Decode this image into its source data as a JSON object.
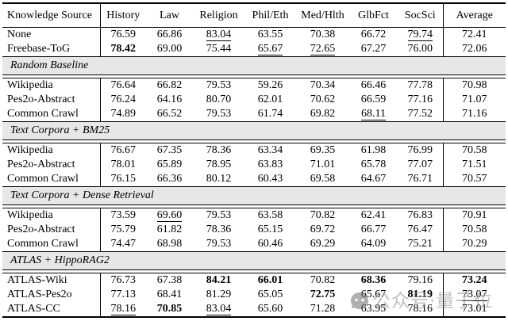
{
  "table": {
    "columns": [
      "Knowledge Source",
      "History",
      "Law",
      "Religion",
      "Phil/Eth",
      "Med/Hlth",
      "GlbFct",
      "SocSci",
      "Average"
    ],
    "sections": [
      {
        "header": null,
        "rows": [
          {
            "label": "None",
            "values": [
              {
                "v": "76.59"
              },
              {
                "v": "66.86"
              },
              {
                "v": "83.04",
                "u": true
              },
              {
                "v": "63.55"
              },
              {
                "v": "70.38"
              },
              {
                "v": "66.72"
              },
              {
                "v": "79.74",
                "u": true
              },
              {
                "v": "72.41"
              }
            ]
          },
          {
            "label": "Freebase-ToG",
            "values": [
              {
                "v": "78.42",
                "b": true
              },
              {
                "v": "69.00"
              },
              {
                "v": "75.44"
              },
              {
                "v": "65.67",
                "u": true
              },
              {
                "v": "72.65",
                "u": true
              },
              {
                "v": "67.27"
              },
              {
                "v": "76.00"
              },
              {
                "v": "72.06"
              }
            ]
          }
        ]
      },
      {
        "header": "Random Baseline",
        "rows": [
          {
            "label": "Wikipedia",
            "values": [
              {
                "v": "76.64"
              },
              {
                "v": "66.82"
              },
              {
                "v": "79.53"
              },
              {
                "v": "59.26"
              },
              {
                "v": "70.34"
              },
              {
                "v": "66.46"
              },
              {
                "v": "77.78"
              },
              {
                "v": "70.98"
              }
            ]
          },
          {
            "label": "Pes2o-Abstract",
            "values": [
              {
                "v": "76.24"
              },
              {
                "v": "64.16"
              },
              {
                "v": "80.70"
              },
              {
                "v": "62.01"
              },
              {
                "v": "70.62"
              },
              {
                "v": "66.59"
              },
              {
                "v": "77.16"
              },
              {
                "v": "71.07"
              }
            ]
          },
          {
            "label": "Common Crawl",
            "values": [
              {
                "v": "74.89"
              },
              {
                "v": "66.52"
              },
              {
                "v": "79.53"
              },
              {
                "v": "61.74"
              },
              {
                "v": "69.82"
              },
              {
                "v": "68.11",
                "u": true
              },
              {
                "v": "77.52"
              },
              {
                "v": "71.16"
              }
            ]
          }
        ]
      },
      {
        "header": "Text Corpora + BM25",
        "rows": [
          {
            "label": "Wikipedia",
            "values": [
              {
                "v": "76.67"
              },
              {
                "v": "67.35"
              },
              {
                "v": "78.36"
              },
              {
                "v": "63.34"
              },
              {
                "v": "69.35"
              },
              {
                "v": "61.98"
              },
              {
                "v": "76.99"
              },
              {
                "v": "70.58"
              }
            ]
          },
          {
            "label": "Pes2o-Abstract",
            "values": [
              {
                "v": "78.01"
              },
              {
                "v": "65.89"
              },
              {
                "v": "78.95"
              },
              {
                "v": "63.83"
              },
              {
                "v": "71.01"
              },
              {
                "v": "65.78"
              },
              {
                "v": "77.07"
              },
              {
                "v": "71.51"
              }
            ]
          },
          {
            "label": "Common Crawl",
            "values": [
              {
                "v": "76.15"
              },
              {
                "v": "66.36"
              },
              {
                "v": "80.12"
              },
              {
                "v": "60.43"
              },
              {
                "v": "69.58"
              },
              {
                "v": "64.67"
              },
              {
                "v": "76.71"
              },
              {
                "v": "70.57"
              }
            ]
          }
        ]
      },
      {
        "header": "Text Corpora + Dense Retrieval",
        "rows": [
          {
            "label": "Wikipedia",
            "values": [
              {
                "v": "73.59"
              },
              {
                "v": "69.60",
                "u": true
              },
              {
                "v": "79.53"
              },
              {
                "v": "63.58"
              },
              {
                "v": "70.82"
              },
              {
                "v": "62.41"
              },
              {
                "v": "76.83"
              },
              {
                "v": "70.91"
              }
            ]
          },
          {
            "label": "Pes2o-Abstract",
            "values": [
              {
                "v": "75.79"
              },
              {
                "v": "61.82"
              },
              {
                "v": "78.36"
              },
              {
                "v": "65.15"
              },
              {
                "v": "69.72"
              },
              {
                "v": "66.77"
              },
              {
                "v": "76.47"
              },
              {
                "v": "70.58"
              }
            ]
          },
          {
            "label": "Common Crawl",
            "values": [
              {
                "v": "74.47"
              },
              {
                "v": "68.98"
              },
              {
                "v": "79.53"
              },
              {
                "v": "60.46"
              },
              {
                "v": "69.29"
              },
              {
                "v": "64.09"
              },
              {
                "v": "75.21"
              },
              {
                "v": "70.29"
              }
            ]
          }
        ]
      },
      {
        "header": "ATLAS + HippoRAG2",
        "rows": [
          {
            "label": "ATLAS-Wiki",
            "values": [
              {
                "v": "76.73"
              },
              {
                "v": "67.38"
              },
              {
                "v": "84.21",
                "b": true
              },
              {
                "v": "66.01",
                "b": true
              },
              {
                "v": "70.82"
              },
              {
                "v": "68.36",
                "b": true
              },
              {
                "v": "79.16"
              },
              {
                "v": "73.24",
                "b": true
              }
            ]
          },
          {
            "label": "ATLAS-Pes2o",
            "values": [
              {
                "v": "77.13"
              },
              {
                "v": "68.41"
              },
              {
                "v": "81.29"
              },
              {
                "v": "65.05"
              },
              {
                "v": "72.75",
                "b": true
              },
              {
                "v": "65.67"
              },
              {
                "v": "81.19",
                "b": true
              },
              {
                "v": "73.07",
                "u": true
              }
            ]
          },
          {
            "label": "ATLAS-CC",
            "values": [
              {
                "v": "78.16",
                "u": true
              },
              {
                "v": "70.85",
                "b": true
              },
              {
                "v": "83.04",
                "u": true
              },
              {
                "v": "65.60"
              },
              {
                "v": "71.28"
              },
              {
                "v": "63.95"
              },
              {
                "v": "78.16"
              },
              {
                "v": "73.01"
              }
            ]
          }
        ]
      }
    ],
    "style_legend": {
      "bold": "best score in column",
      "underline": "second-best score in column"
    },
    "band_color": "#e7e7e7"
  },
  "watermark": {
    "text": "公众号·量子位",
    "logo": "qbitai-logo",
    "color": "#8c8c8c"
  }
}
